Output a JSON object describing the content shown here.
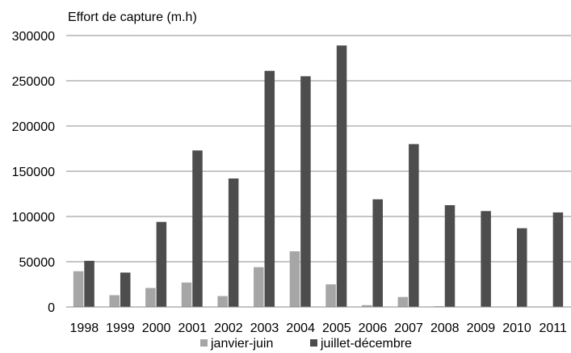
{
  "chart_data": {
    "type": "bar",
    "title": "",
    "ylabel": "Effort de capture (m.h)",
    "xlabel": "",
    "ylim": [
      0,
      300000
    ],
    "yticks": [
      0,
      50000,
      100000,
      150000,
      200000,
      250000,
      300000
    ],
    "ytick_labels": [
      "0",
      "50000",
      "100000",
      "150000",
      "200000",
      "250000",
      "300000"
    ],
    "grid": "horizontal",
    "legend": "bottom",
    "categories": [
      "1998",
      "1999",
      "2000",
      "2001",
      "2002",
      "2003",
      "2004",
      "2005",
      "2006",
      "2007",
      "2008",
      "2009",
      "2010",
      "2011"
    ],
    "series": [
      {
        "name": "janvier-juin",
        "color": "#a6a6a6",
        "values": [
          39500,
          13000,
          21000,
          27000,
          12000,
          44000,
          61500,
          25000,
          2000,
          11000,
          800,
          0,
          0,
          0
        ]
      },
      {
        "name": "juillet-décembre",
        "color": "#4d4d4d",
        "values": [
          51000,
          38000,
          94000,
          173000,
          142000,
          261000,
          255000,
          289000,
          119000,
          180000,
          112500,
          106000,
          87000,
          104500
        ]
      }
    ]
  }
}
